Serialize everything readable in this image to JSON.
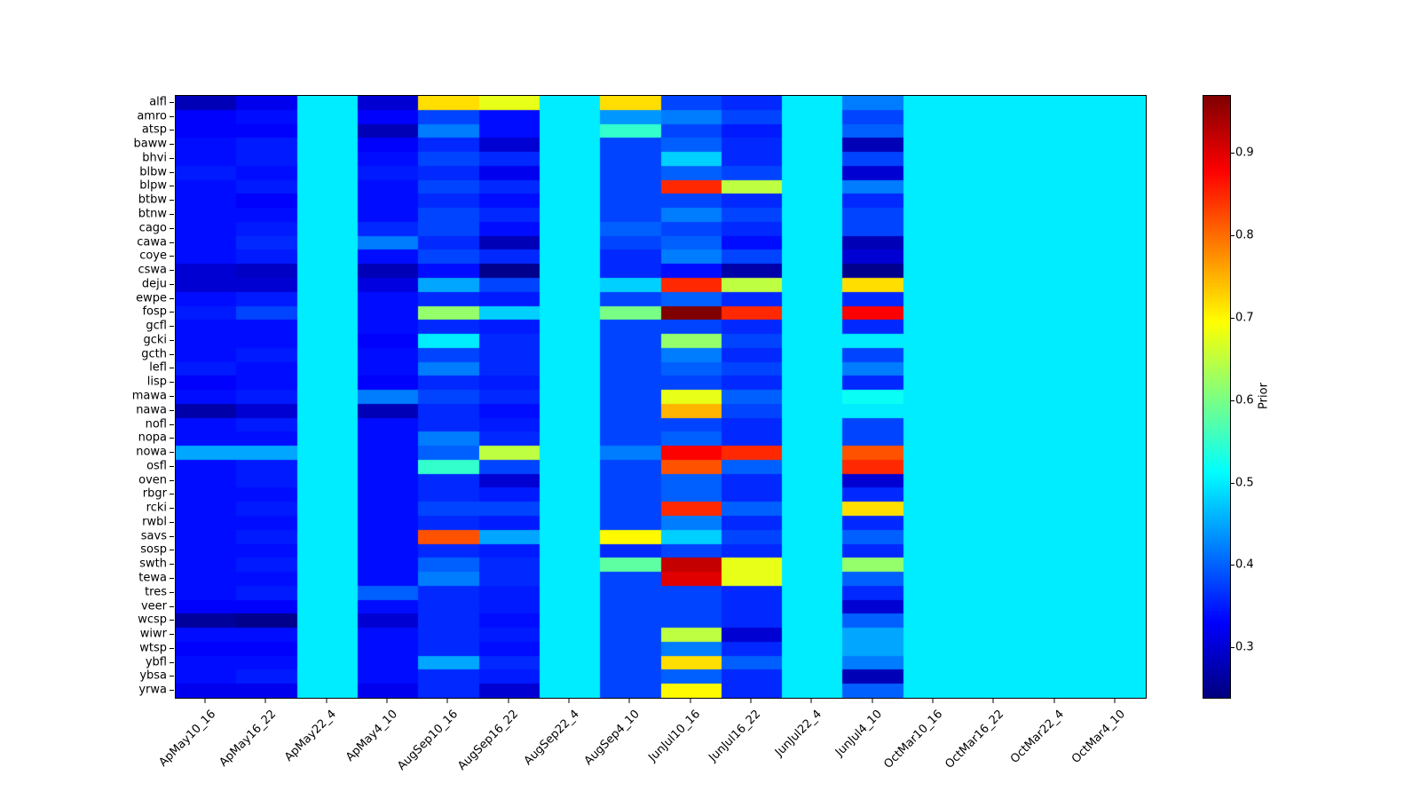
{
  "figure": {
    "background": "#ffffff"
  },
  "chart_data": {
    "type": "heatmap",
    "colormap": "jet",
    "vmin": 0.24,
    "vmax": 0.97,
    "colorbar": {
      "label": "Prior",
      "ticks": [
        0.3,
        0.4,
        0.5,
        0.6,
        0.7,
        0.8,
        0.9
      ]
    },
    "x_labels": [
      "ApMay10_16",
      "ApMay16_22",
      "ApMay22_4",
      "ApMay4_10",
      "AugSep10_16",
      "AugSep16_22",
      "AugSep22_4",
      "AugSep4_10",
      "JunJul10_16",
      "JunJul16_22",
      "JunJul22_4",
      "JunJul4_10",
      "OctMar10_16",
      "OctMar16_22",
      "OctMar22_4",
      "OctMar4_10"
    ],
    "y_labels": [
      "alfl",
      "amro",
      "atsp",
      "baww",
      "bhvi",
      "blbw",
      "blpw",
      "btbw",
      "btnw",
      "cago",
      "cawa",
      "coye",
      "cswa",
      "deju",
      "ewpe",
      "fosp",
      "gcfl",
      "gcki",
      "gcth",
      "lefl",
      "lisp",
      "mawa",
      "nawa",
      "nofl",
      "nopa",
      "nowa",
      "osfl",
      "oven",
      "rbgr",
      "rcki",
      "rwbl",
      "savs",
      "sosp",
      "swth",
      "tewa",
      "tres",
      "veer",
      "wcsp",
      "wiwr",
      "wtsp",
      "ybfl",
      "ybsa",
      "yrwa"
    ],
    "values": [
      [
        0.28,
        0.32,
        0.5,
        0.3,
        0.72,
        0.68,
        0.5,
        0.72,
        0.38,
        0.36,
        0.5,
        0.42,
        0.5,
        0.5,
        0.5,
        0.5
      ],
      [
        0.33,
        0.34,
        0.5,
        0.33,
        0.38,
        0.34,
        0.5,
        0.44,
        0.42,
        0.38,
        0.5,
        0.38,
        0.5,
        0.5,
        0.5,
        0.5
      ],
      [
        0.33,
        0.33,
        0.5,
        0.28,
        0.42,
        0.34,
        0.5,
        0.55,
        0.38,
        0.35,
        0.5,
        0.4,
        0.5,
        0.5,
        0.5,
        0.5
      ],
      [
        0.34,
        0.35,
        0.5,
        0.33,
        0.36,
        0.3,
        0.5,
        0.38,
        0.4,
        0.36,
        0.5,
        0.28,
        0.5,
        0.5,
        0.5,
        0.5
      ],
      [
        0.34,
        0.35,
        0.5,
        0.34,
        0.38,
        0.36,
        0.5,
        0.38,
        0.48,
        0.36,
        0.5,
        0.38,
        0.5,
        0.5,
        0.5,
        0.5
      ],
      [
        0.35,
        0.34,
        0.5,
        0.35,
        0.36,
        0.32,
        0.5,
        0.38,
        0.4,
        0.38,
        0.5,
        0.3,
        0.5,
        0.5,
        0.5,
        0.5
      ],
      [
        0.34,
        0.35,
        0.5,
        0.34,
        0.38,
        0.36,
        0.5,
        0.38,
        0.85,
        0.65,
        0.5,
        0.42,
        0.5,
        0.5,
        0.5,
        0.5
      ],
      [
        0.34,
        0.33,
        0.5,
        0.34,
        0.36,
        0.34,
        0.5,
        0.38,
        0.38,
        0.36,
        0.5,
        0.36,
        0.5,
        0.5,
        0.5,
        0.5
      ],
      [
        0.34,
        0.34,
        0.5,
        0.34,
        0.38,
        0.36,
        0.5,
        0.38,
        0.42,
        0.38,
        0.5,
        0.38,
        0.5,
        0.5,
        0.5,
        0.5
      ],
      [
        0.34,
        0.35,
        0.5,
        0.36,
        0.38,
        0.34,
        0.5,
        0.4,
        0.38,
        0.36,
        0.5,
        0.38,
        0.5,
        0.5,
        0.5,
        0.5
      ],
      [
        0.34,
        0.36,
        0.5,
        0.42,
        0.36,
        0.28,
        0.5,
        0.38,
        0.4,
        0.34,
        0.5,
        0.28,
        0.5,
        0.5,
        0.5,
        0.5
      ],
      [
        0.34,
        0.35,
        0.5,
        0.34,
        0.38,
        0.36,
        0.5,
        0.36,
        0.42,
        0.38,
        0.5,
        0.3,
        0.5,
        0.5,
        0.5,
        0.5
      ],
      [
        0.3,
        0.29,
        0.5,
        0.28,
        0.34,
        0.25,
        0.5,
        0.36,
        0.34,
        0.27,
        0.5,
        0.25,
        0.5,
        0.5,
        0.5,
        0.5
      ],
      [
        0.3,
        0.3,
        0.5,
        0.31,
        0.45,
        0.38,
        0.5,
        0.48,
        0.85,
        0.65,
        0.5,
        0.72,
        0.5,
        0.5,
        0.5,
        0.5
      ],
      [
        0.34,
        0.35,
        0.5,
        0.34,
        0.36,
        0.35,
        0.5,
        0.38,
        0.4,
        0.36,
        0.5,
        0.36,
        0.5,
        0.5,
        0.5,
        0.5
      ],
      [
        0.35,
        0.38,
        0.5,
        0.34,
        0.62,
        0.48,
        0.5,
        0.6,
        0.97,
        0.85,
        0.5,
        0.88,
        0.5,
        0.5,
        0.5,
        0.5
      ],
      [
        0.34,
        0.34,
        0.5,
        0.34,
        0.36,
        0.35,
        0.5,
        0.38,
        0.38,
        0.36,
        0.5,
        0.36,
        0.5,
        0.5,
        0.5,
        0.5
      ],
      [
        0.34,
        0.34,
        0.5,
        0.33,
        0.5,
        0.36,
        0.5,
        0.38,
        0.62,
        0.38,
        0.5,
        0.5,
        0.5,
        0.5,
        0.5,
        0.5
      ],
      [
        0.34,
        0.35,
        0.5,
        0.34,
        0.38,
        0.36,
        0.5,
        0.38,
        0.42,
        0.36,
        0.5,
        0.38,
        0.5,
        0.5,
        0.5,
        0.5
      ],
      [
        0.35,
        0.34,
        0.5,
        0.34,
        0.42,
        0.36,
        0.5,
        0.38,
        0.4,
        0.38,
        0.5,
        0.42,
        0.5,
        0.5,
        0.5,
        0.5
      ],
      [
        0.33,
        0.34,
        0.5,
        0.33,
        0.36,
        0.35,
        0.5,
        0.38,
        0.38,
        0.36,
        0.5,
        0.36,
        0.5,
        0.5,
        0.5,
        0.5
      ],
      [
        0.34,
        0.35,
        0.5,
        0.42,
        0.38,
        0.36,
        0.5,
        0.38,
        0.68,
        0.4,
        0.5,
        0.52,
        0.5,
        0.5,
        0.5,
        0.5
      ],
      [
        0.27,
        0.3,
        0.5,
        0.28,
        0.36,
        0.34,
        0.5,
        0.38,
        0.75,
        0.38,
        0.5,
        0.5,
        0.5,
        0.5,
        0.5,
        0.5
      ],
      [
        0.34,
        0.35,
        0.5,
        0.34,
        0.36,
        0.35,
        0.5,
        0.38,
        0.38,
        0.36,
        0.5,
        0.38,
        0.5,
        0.5,
        0.5,
        0.5
      ],
      [
        0.34,
        0.34,
        0.5,
        0.34,
        0.42,
        0.36,
        0.5,
        0.38,
        0.4,
        0.36,
        0.5,
        0.38,
        0.5,
        0.5,
        0.5,
        0.5
      ],
      [
        0.45,
        0.45,
        0.5,
        0.34,
        0.4,
        0.65,
        0.5,
        0.42,
        0.88,
        0.85,
        0.5,
        0.82,
        0.5,
        0.5,
        0.5,
        0.5
      ],
      [
        0.34,
        0.35,
        0.5,
        0.34,
        0.55,
        0.38,
        0.5,
        0.38,
        0.82,
        0.4,
        0.5,
        0.85,
        0.5,
        0.5,
        0.5,
        0.5
      ],
      [
        0.34,
        0.35,
        0.5,
        0.34,
        0.36,
        0.3,
        0.5,
        0.38,
        0.4,
        0.36,
        0.5,
        0.3,
        0.5,
        0.5,
        0.5,
        0.5
      ],
      [
        0.34,
        0.34,
        0.5,
        0.34,
        0.36,
        0.35,
        0.5,
        0.38,
        0.4,
        0.36,
        0.5,
        0.36,
        0.5,
        0.5,
        0.5,
        0.5
      ],
      [
        0.34,
        0.35,
        0.5,
        0.34,
        0.38,
        0.38,
        0.5,
        0.38,
        0.85,
        0.4,
        0.5,
        0.72,
        0.5,
        0.5,
        0.5,
        0.5
      ],
      [
        0.34,
        0.34,
        0.5,
        0.34,
        0.36,
        0.35,
        0.5,
        0.38,
        0.42,
        0.36,
        0.5,
        0.36,
        0.5,
        0.5,
        0.5,
        0.5
      ],
      [
        0.34,
        0.35,
        0.5,
        0.34,
        0.82,
        0.45,
        0.5,
        0.7,
        0.48,
        0.38,
        0.5,
        0.4,
        0.5,
        0.5,
        0.5,
        0.5
      ],
      [
        0.34,
        0.34,
        0.5,
        0.34,
        0.36,
        0.35,
        0.5,
        0.36,
        0.38,
        0.36,
        0.5,
        0.36,
        0.5,
        0.5,
        0.5,
        0.5
      ],
      [
        0.34,
        0.35,
        0.5,
        0.34,
        0.4,
        0.36,
        0.5,
        0.58,
        0.92,
        0.68,
        0.5,
        0.62,
        0.5,
        0.5,
        0.5,
        0.5
      ],
      [
        0.34,
        0.34,
        0.5,
        0.34,
        0.42,
        0.36,
        0.5,
        0.38,
        0.9,
        0.68,
        0.5,
        0.4,
        0.5,
        0.5,
        0.5,
        0.5
      ],
      [
        0.34,
        0.35,
        0.5,
        0.4,
        0.36,
        0.35,
        0.5,
        0.38,
        0.38,
        0.36,
        0.5,
        0.36,
        0.5,
        0.5,
        0.5,
        0.5
      ],
      [
        0.33,
        0.33,
        0.5,
        0.34,
        0.36,
        0.35,
        0.5,
        0.38,
        0.38,
        0.36,
        0.5,
        0.3,
        0.5,
        0.5,
        0.5,
        0.5
      ],
      [
        0.26,
        0.25,
        0.5,
        0.3,
        0.36,
        0.34,
        0.5,
        0.38,
        0.38,
        0.36,
        0.5,
        0.4,
        0.5,
        0.5,
        0.5,
        0.5
      ],
      [
        0.34,
        0.34,
        0.5,
        0.34,
        0.36,
        0.35,
        0.5,
        0.38,
        0.65,
        0.3,
        0.5,
        0.45,
        0.5,
        0.5,
        0.5,
        0.5
      ],
      [
        0.33,
        0.33,
        0.5,
        0.34,
        0.36,
        0.34,
        0.5,
        0.38,
        0.42,
        0.36,
        0.5,
        0.45,
        0.5,
        0.5,
        0.5,
        0.5
      ],
      [
        0.34,
        0.34,
        0.5,
        0.34,
        0.45,
        0.36,
        0.5,
        0.38,
        0.72,
        0.4,
        0.5,
        0.42,
        0.5,
        0.5,
        0.5,
        0.5
      ],
      [
        0.34,
        0.35,
        0.5,
        0.34,
        0.36,
        0.35,
        0.5,
        0.38,
        0.4,
        0.36,
        0.5,
        0.28,
        0.5,
        0.5,
        0.5,
        0.5
      ],
      [
        0.32,
        0.32,
        0.5,
        0.32,
        0.36,
        0.3,
        0.5,
        0.38,
        0.7,
        0.36,
        0.5,
        0.4,
        0.5,
        0.5,
        0.5,
        0.5
      ]
    ]
  }
}
